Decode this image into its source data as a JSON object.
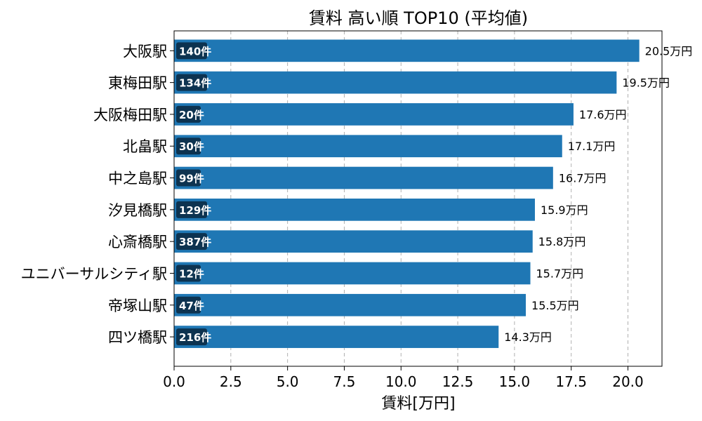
{
  "chart_data": {
    "type": "bar",
    "orientation": "horizontal",
    "title": "賃料 高い順 TOP10 (平均値)",
    "xlabel": "賃料[万円]",
    "ylabel": "",
    "xlim": [
      0,
      21.5
    ],
    "xticks": [
      "0.0",
      "2.5",
      "5.0",
      "7.5",
      "10.0",
      "12.5",
      "15.0",
      "17.5",
      "20.0"
    ],
    "grid": "x-dashed",
    "bar_color": "#1f77b4",
    "badge_color": "#0d3350",
    "value_suffix": "万円",
    "count_suffix": "件",
    "categories": [
      "大阪駅",
      "東梅田駅",
      "大阪梅田駅",
      "北畠駅",
      "中之島駅",
      "汐見橋駅",
      "心斎橋駅",
      "ユニバーサルシティ駅",
      "帝塚山駅",
      "四ツ橋駅"
    ],
    "values": [
      20.5,
      19.5,
      17.6,
      17.1,
      16.7,
      15.9,
      15.8,
      15.7,
      15.5,
      14.3
    ],
    "value_labels": [
      "20.5万円",
      "19.5万円",
      "17.6万円",
      "17.1万円",
      "16.7万円",
      "15.9万円",
      "15.8万円",
      "15.7万円",
      "15.5万円",
      "14.3万円"
    ],
    "counts": [
      "140件",
      "134件",
      "20件",
      "30件",
      "99件",
      "129件",
      "387件",
      "12件",
      "47件",
      "216件"
    ]
  }
}
